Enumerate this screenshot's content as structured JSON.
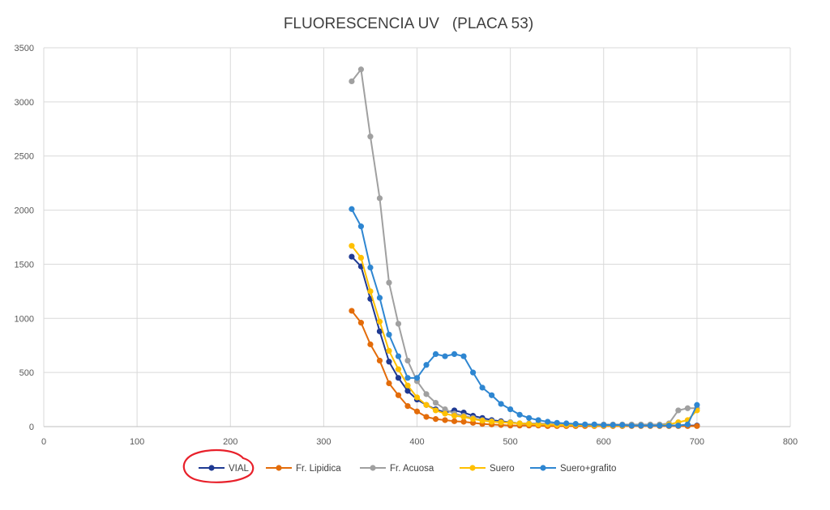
{
  "chart_data": {
    "type": "line",
    "title": "FLUORESCENCIA UV   (PLACA 53)",
    "xlabel": "",
    "ylabel": "",
    "xlim": [
      0,
      800
    ],
    "ylim": [
      0,
      3500
    ],
    "x_ticks": [
      0,
      100,
      200,
      300,
      400,
      500,
      600,
      700,
      800
    ],
    "y_ticks": [
      0,
      500,
      1000,
      1500,
      2000,
      2500,
      3000,
      3500
    ],
    "grid": "vertical and horizontal",
    "legend_position": "bottom",
    "x": [
      330,
      340,
      350,
      360,
      370,
      380,
      390,
      400,
      410,
      420,
      430,
      440,
      450,
      460,
      470,
      480,
      490,
      500,
      510,
      520,
      530,
      540,
      550,
      560,
      570,
      580,
      590,
      600,
      610,
      620,
      630,
      640,
      650,
      660,
      670,
      680,
      690,
      700
    ],
    "series": [
      {
        "name": "VIAL",
        "color": "#1f3a93",
        "values": [
          1570,
          1480,
          1180,
          880,
          600,
          450,
          330,
          250,
          200,
          160,
          130,
          150,
          130,
          100,
          80,
          60,
          50,
          40,
          30,
          25,
          20,
          20,
          15,
          15,
          10,
          10,
          10,
          10,
          10,
          10,
          10,
          10,
          10,
          10,
          10,
          10,
          10,
          10
        ]
      },
      {
        "name": "Fr. Lipidica",
        "color": "#e36c0a",
        "values": [
          1070,
          960,
          760,
          610,
          400,
          290,
          190,
          140,
          90,
          70,
          60,
          50,
          45,
          35,
          25,
          20,
          15,
          10,
          10,
          10,
          10,
          5,
          5,
          5,
          5,
          5,
          5,
          5,
          5,
          5,
          5,
          5,
          5,
          5,
          5,
          5,
          5,
          5
        ]
      },
      {
        "name": "Fr. Acuosa",
        "color": "#a0a0a0",
        "values": [
          3190,
          3300,
          2680,
          2110,
          1330,
          950,
          610,
          420,
          300,
          220,
          160,
          120,
          100,
          80,
          60,
          50,
          40,
          40,
          30,
          30,
          30,
          25,
          25,
          25,
          20,
          20,
          20,
          20,
          20,
          20,
          20,
          20,
          20,
          20,
          30,
          150,
          170,
          170
        ]
      },
      {
        "name": "Suero",
        "color": "#ffc000",
        "values": [
          1670,
          1560,
          1250,
          970,
          700,
          530,
          380,
          270,
          200,
          150,
          120,
          100,
          90,
          70,
          55,
          45,
          40,
          35,
          30,
          25,
          20,
          20,
          15,
          15,
          15,
          15,
          10,
          10,
          10,
          10,
          10,
          10,
          10,
          10,
          20,
          40,
          60,
          150
        ]
      },
      {
        "name": "Suero+grafito",
        "color": "#2e86d1",
        "values": [
          2010,
          1850,
          1470,
          1190,
          850,
          650,
          450,
          450,
          570,
          670,
          650,
          670,
          650,
          500,
          360,
          290,
          210,
          160,
          110,
          80,
          60,
          45,
          35,
          30,
          25,
          20,
          20,
          15,
          15,
          15,
          10,
          10,
          10,
          10,
          10,
          10,
          20,
          200
        ]
      }
    ]
  }
}
